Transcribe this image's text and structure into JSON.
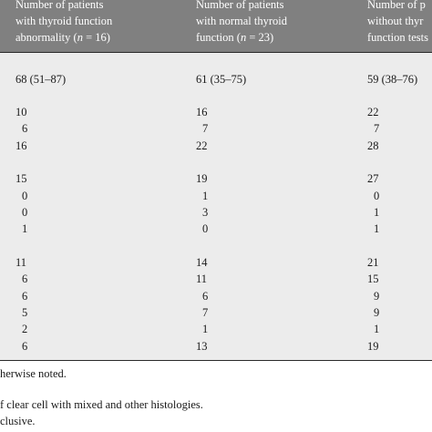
{
  "table": {
    "headers": [
      {
        "pre": "Number of patients\nwith thyroid function\nabnormality (",
        "italic": "n",
        "post": " = 16)"
      },
      {
        "pre": "Number of patients\nwith normal thyroid\nfunction (",
        "italic": "n",
        "post": " = 23)"
      },
      {
        "pre": "Number of p\nwithout thyr\nfunction tests",
        "italic": "",
        "post": ""
      }
    ],
    "rows": [
      {
        "cells": [
          "68 (51–87)",
          "61 (35–75)",
          "59 (38–76)"
        ]
      },
      {
        "cells": [
          "10",
          "16",
          "22"
        ]
      },
      {
        "cells": [
          "6",
          "7",
          "7"
        ]
      },
      {
        "cells": [
          "16",
          "22",
          "28"
        ]
      },
      {
        "cells": [
          "15",
          "19",
          "27"
        ]
      },
      {
        "cells": [
          "0",
          "1",
          "0"
        ]
      },
      {
        "cells": [
          "0",
          "3",
          "1"
        ]
      },
      {
        "cells": [
          "1",
          "0",
          "1"
        ]
      },
      {
        "cells": [
          "11",
          "14",
          "21"
        ]
      },
      {
        "cells": [
          "6",
          "11",
          "15"
        ]
      },
      {
        "cells": [
          "6",
          "6",
          "9"
        ]
      },
      {
        "cells": [
          "5",
          "7",
          "9"
        ]
      },
      {
        "cells": [
          "2",
          "1",
          "1"
        ]
      },
      {
        "cells": [
          "6",
          "13",
          "19"
        ]
      }
    ]
  },
  "footnotes": [
    "herwise noted.",
    "f clear cell with mixed and other histologies.",
    "clusive."
  ]
}
